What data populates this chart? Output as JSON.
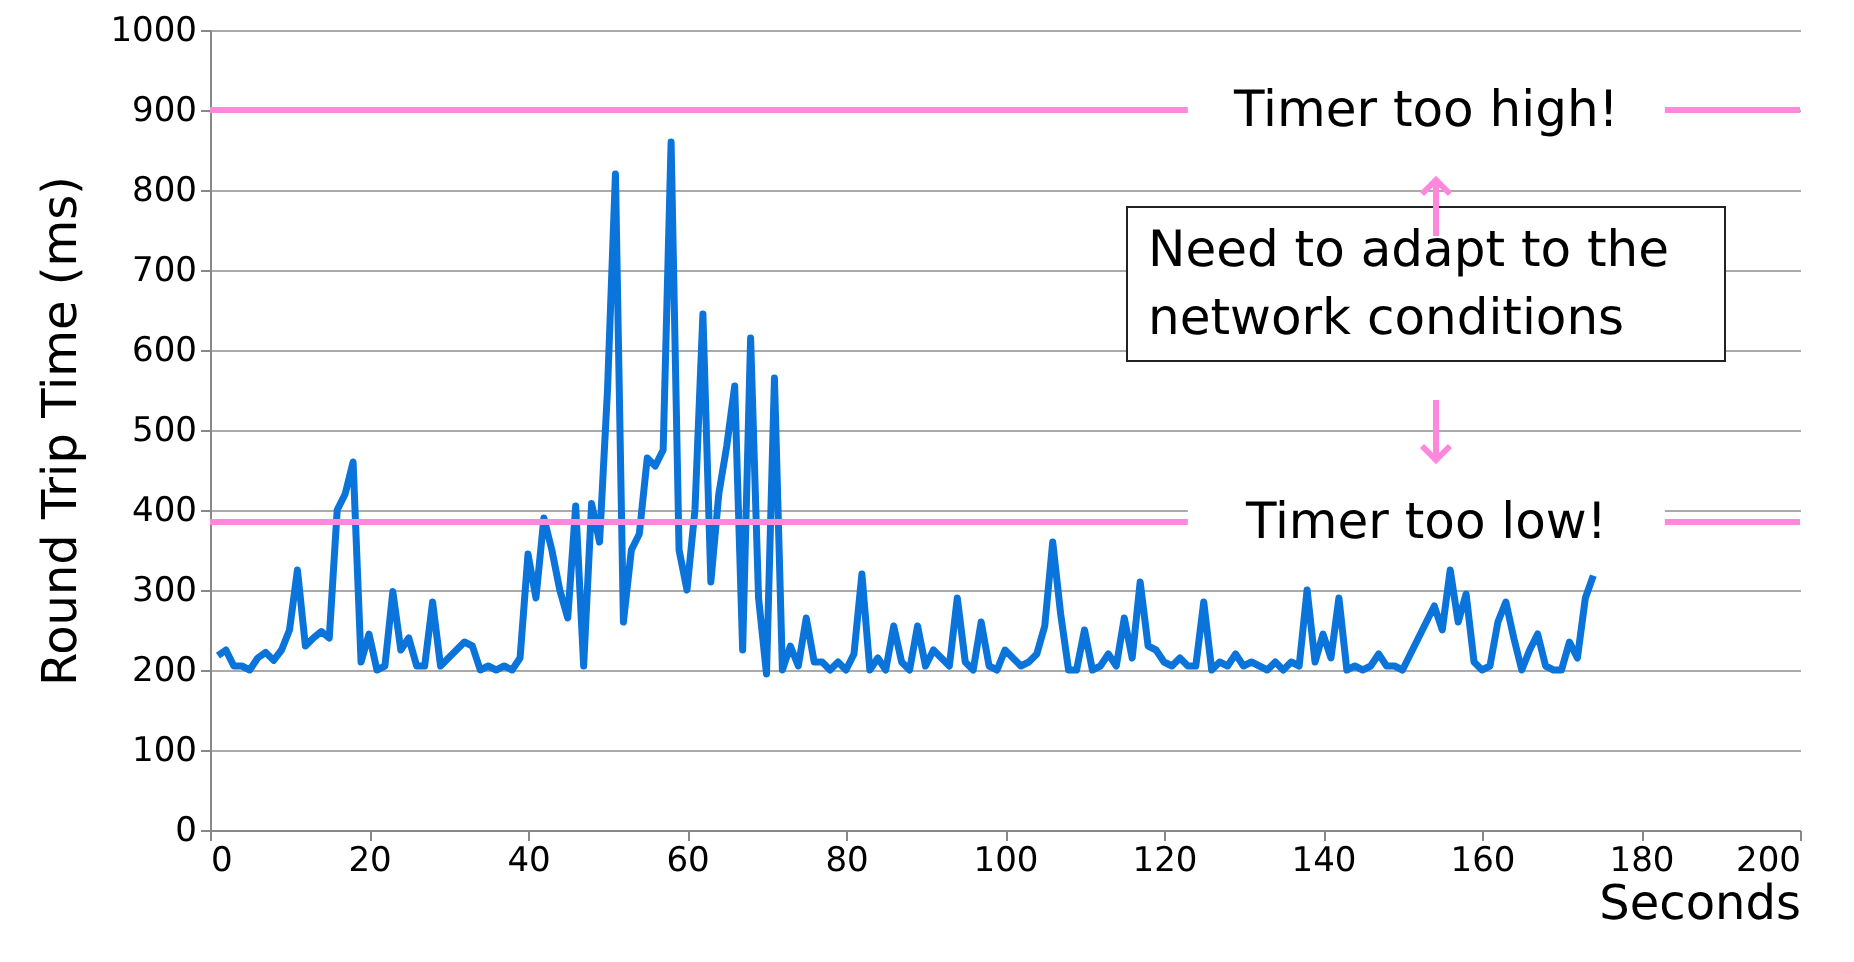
{
  "chart_data": {
    "type": "line",
    "xlabel": "Seconds",
    "ylabel": "Round Trip Time (ms)",
    "x": [
      1,
      2,
      3,
      4,
      5,
      6,
      7,
      8,
      9,
      10,
      11,
      12,
      13,
      14,
      15,
      16,
      17,
      18,
      19,
      20,
      21,
      22,
      23,
      24,
      25,
      26,
      27,
      28,
      29,
      30,
      31,
      32,
      33,
      34,
      35,
      36,
      37,
      38,
      39,
      40,
      41,
      42,
      43,
      44,
      45,
      46,
      47,
      48,
      49,
      50,
      51,
      52,
      53,
      54,
      55,
      56,
      57,
      58,
      59,
      60,
      61,
      62,
      63,
      64,
      65,
      66,
      67,
      68,
      69,
      70,
      71,
      72,
      73,
      74,
      75,
      76,
      77,
      78,
      79,
      80,
      81,
      82,
      83,
      84,
      85,
      86,
      87,
      88,
      89,
      90,
      91,
      92,
      93,
      94,
      95,
      96,
      97,
      98,
      99,
      100,
      101,
      102,
      103,
      104,
      105,
      106,
      107,
      108,
      109,
      110,
      111,
      112,
      113,
      114,
      115,
      116,
      117,
      118,
      119,
      120,
      121,
      122,
      123,
      124,
      125,
      126,
      127,
      128,
      129,
      130,
      131,
      132,
      133,
      134,
      135,
      136,
      137,
      138,
      139,
      140,
      141,
      142,
      143,
      144,
      145,
      146,
      147,
      148,
      149,
      150,
      151,
      152,
      153,
      154,
      155,
      156,
      157,
      158,
      159,
      160,
      161,
      162,
      163,
      164,
      165,
      166,
      167,
      168,
      169,
      170,
      171,
      172,
      173,
      174
    ],
    "series": [
      {
        "color": "#0a74da",
        "values": [
          218,
          225,
          205,
          205,
          200,
          215,
          222,
          212,
          225,
          250,
          325,
          230,
          240,
          248,
          240,
          400,
          420,
          460,
          210,
          245,
          200,
          205,
          298,
          225,
          240,
          205,
          205,
          285,
          205,
          215,
          225,
          235,
          230,
          200,
          205,
          200,
          205,
          200,
          215,
          345,
          290,
          390,
          350,
          300,
          265,
          405,
          205,
          408,
          360,
          550,
          820,
          260,
          350,
          370,
          465,
          455,
          475,
          860,
          350,
          300,
          400,
          645,
          310,
          420,
          480,
          555,
          225,
          615,
          290,
          195,
          565,
          200,
          230,
          205,
          265,
          210,
          210,
          200,
          210,
          200,
          220,
          320,
          200,
          215,
          200,
          255,
          210,
          200,
          255,
          205,
          225,
          215,
          205,
          290,
          210,
          200,
          260,
          205,
          200,
          225,
          215,
          205,
          210,
          220,
          255,
          360,
          270,
          200,
          200,
          250,
          200,
          205,
          220,
          205,
          265,
          215,
          310,
          230,
          225,
          210,
          205,
          215,
          205,
          205,
          285,
          200,
          210,
          205,
          220,
          205,
          210,
          205,
          200,
          210,
          200,
          210,
          205,
          300,
          210,
          245,
          215,
          290,
          200,
          205,
          200,
          205,
          220,
          205,
          205,
          200,
          220,
          240,
          260,
          280,
          250,
          325,
          260,
          295,
          210,
          200,
          205,
          260,
          285,
          240,
          200,
          225,
          245,
          205,
          200,
          200,
          235,
          215,
          290,
          318
        ]
      }
    ],
    "xlim": [
      0,
      200
    ],
    "xticks": [
      0,
      20,
      40,
      60,
      80,
      100,
      120,
      140,
      160,
      180,
      200
    ],
    "ylim": [
      0,
      1000
    ],
    "yticks": [
      0,
      100,
      200,
      300,
      400,
      500,
      600,
      700,
      800,
      900,
      1000
    ],
    "grid": "y",
    "ref_lines": [
      {
        "axis": "y",
        "value": 900,
        "label": "Timer too high!",
        "color": "#ff88dd"
      },
      {
        "axis": "y",
        "value": 385,
        "label": "Timer too low!",
        "color": "#ff88dd"
      }
    ],
    "annotations": [
      "Need to adapt to the network conditions"
    ]
  }
}
